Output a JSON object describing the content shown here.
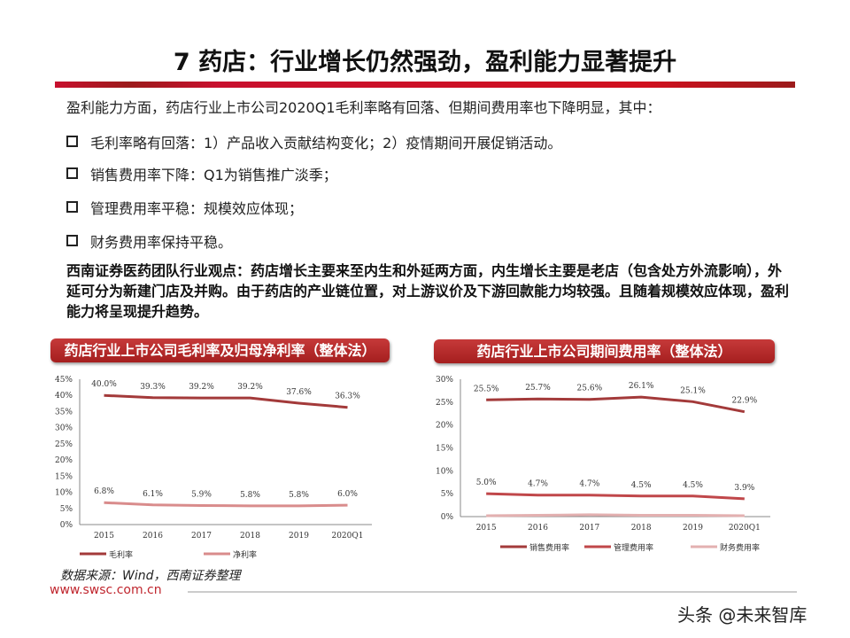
{
  "title": "7 药店：行业增长仍然强劲，盈利能力显著提升",
  "intro": "盈利能力方面，药店行业上市公司2020Q1毛利率略有回落、但期间费用率也下降明显，其中：",
  "bullets": [
    "毛利率略有回落：1）产品收入贡献结构变化；2）疫情期间开展促销活动。",
    "销售费用率下降：Q1为销售推广淡季；",
    "管理费用率平稳：规模效应体现；",
    "财务费用率保持平稳。"
  ],
  "view": "西南证券医药团队行业观点：药店增长主要来至内生和外延两方面，内生增长主要是老店（包含处方外流影响），外延可分为新建门店及并购。由于药店的产业链位置，对上游议价及下游回款能力均较强。且随着规模效应体现，盈利能力将呈现提升趋势。",
  "source": "数据来源：Wind，西南证券整理",
  "site": "www.swsc.com.cn",
  "watermark": "头条 @未来智库",
  "chart_data": [
    {
      "type": "line",
      "title": "药店行业上市公司毛利率及归母净利率（整体法）",
      "categories": [
        "2015",
        "2016",
        "2017",
        "2018",
        "2019",
        "2020Q1"
      ],
      "ylim": [
        0,
        45
      ],
      "yticks": [
        "0%",
        "5%",
        "10%",
        "15%",
        "20%",
        "25%",
        "30%",
        "35%",
        "40%",
        "45%"
      ],
      "legend": "bottom",
      "grid": false,
      "series": [
        {
          "name": "毛利率",
          "values": [
            40.0,
            39.3,
            39.2,
            39.2,
            37.6,
            36.3
          ],
          "labels": [
            "40.0%",
            "39.3%",
            "39.2%",
            "39.2%",
            "37.6%",
            "36.3%"
          ],
          "color": "#a33a3a"
        },
        {
          "name": "净利率",
          "values": [
            6.8,
            6.1,
            5.9,
            5.8,
            5.8,
            6.0
          ],
          "labels": [
            "6.8%",
            "6.1%",
            "5.9%",
            "5.8%",
            "5.8%",
            "6.0%"
          ],
          "color": "#d98c8c"
        }
      ]
    },
    {
      "type": "line",
      "title": "药店行业上市公司期间费用率（整体法）",
      "categories": [
        "2015",
        "2016",
        "2017",
        "2018",
        "2019",
        "2020Q1"
      ],
      "ylim": [
        0,
        30
      ],
      "yticks": [
        "0%",
        "5%",
        "10%",
        "15%",
        "20%",
        "25%",
        "30%"
      ],
      "legend": "bottom",
      "grid": false,
      "series": [
        {
          "name": "销售费用率",
          "values": [
            25.5,
            25.7,
            25.6,
            26.1,
            25.1,
            22.9
          ],
          "labels": [
            "25.5%",
            "25.7%",
            "25.6%",
            "26.1%",
            "25.1%",
            "22.9%"
          ],
          "color": "#a33a3a"
        },
        {
          "name": "管理费用率",
          "values": [
            5.0,
            4.7,
            4.7,
            4.5,
            4.5,
            3.9
          ],
          "labels": [
            "5.0%",
            "4.7%",
            "4.7%",
            "4.5%",
            "4.5%",
            "3.9%"
          ],
          "color": "#c0474a"
        },
        {
          "name": "财务费用率",
          "values": [
            0.2,
            0.3,
            0.4,
            0.3,
            0.3,
            0.2
          ],
          "color": "#e3b0b0"
        }
      ]
    }
  ]
}
